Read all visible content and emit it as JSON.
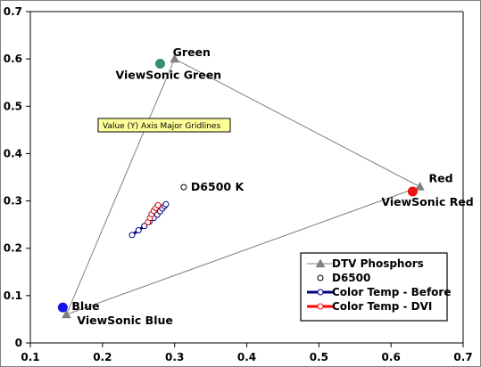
{
  "chart_data": {
    "type": "scatter",
    "xlim": [
      0.1,
      0.7
    ],
    "ylim": [
      0,
      0.7
    ],
    "x_ticks": [
      "0.1",
      "0.2",
      "0.3",
      "0.4",
      "0.5",
      "0.6",
      "0.7"
    ],
    "y_ticks": [
      "0",
      "0.1",
      "0.2",
      "0.3",
      "0.4",
      "0.5",
      "0.6",
      "0.7"
    ],
    "grid": false,
    "legend_position": "bottom-right",
    "series": [
      {
        "name": "DTV Phosphors",
        "color": "#808080",
        "marker": "triangle",
        "closed": true,
        "points": [
          {
            "x": 0.64,
            "y": 0.33,
            "label": "Red"
          },
          {
            "x": 0.3,
            "y": 0.6,
            "label": "Green"
          },
          {
            "x": 0.15,
            "y": 0.06,
            "label": "Blue"
          }
        ]
      },
      {
        "name": "D6500",
        "color": "#000000",
        "marker": "hollow-circle",
        "points": [
          {
            "x": 0.3127,
            "y": 0.329,
            "label": "D6500 K"
          }
        ]
      },
      {
        "name": "Color Temp - Before",
        "color": "#000080",
        "marker": "hollow-circle",
        "points": [
          {
            "x": 0.241,
            "y": 0.228
          },
          {
            "x": 0.25,
            "y": 0.238
          },
          {
            "x": 0.258,
            "y": 0.247
          },
          {
            "x": 0.265,
            "y": 0.256
          },
          {
            "x": 0.271,
            "y": 0.264
          },
          {
            "x": 0.276,
            "y": 0.271
          },
          {
            "x": 0.28,
            "y": 0.278
          },
          {
            "x": 0.283,
            "y": 0.284
          },
          {
            "x": 0.286,
            "y": 0.289
          },
          {
            "x": 0.288,
            "y": 0.293
          }
        ]
      },
      {
        "name": "Color Temp - DVI",
        "color": "#ff0000",
        "marker": "hollow-circle",
        "points": [
          {
            "x": 0.263,
            "y": 0.255
          },
          {
            "x": 0.266,
            "y": 0.264
          },
          {
            "x": 0.268,
            "y": 0.272
          },
          {
            "x": 0.271,
            "y": 0.279
          },
          {
            "x": 0.274,
            "y": 0.285
          },
          {
            "x": 0.277,
            "y": 0.291
          }
        ]
      },
      {
        "name": "ViewSonic",
        "in_legend": false,
        "marker": "filled-circle",
        "points": [
          {
            "x": 0.63,
            "y": 0.32,
            "label": "ViewSonic Red",
            "color": "#ee1111"
          },
          {
            "x": 0.28,
            "y": 0.59,
            "label": "ViewSonic Green",
            "color": "#33916a"
          },
          {
            "x": 0.145,
            "y": 0.075,
            "label": "ViewSonic Blue",
            "color": "#1515ee"
          }
        ]
      }
    ]
  },
  "tooltip": {
    "text": "Value (Y) Axis Major Gridlines"
  },
  "colors": {
    "axis": "#000000",
    "tooltip_bg": "#ffff99",
    "page_border": "#808080"
  }
}
